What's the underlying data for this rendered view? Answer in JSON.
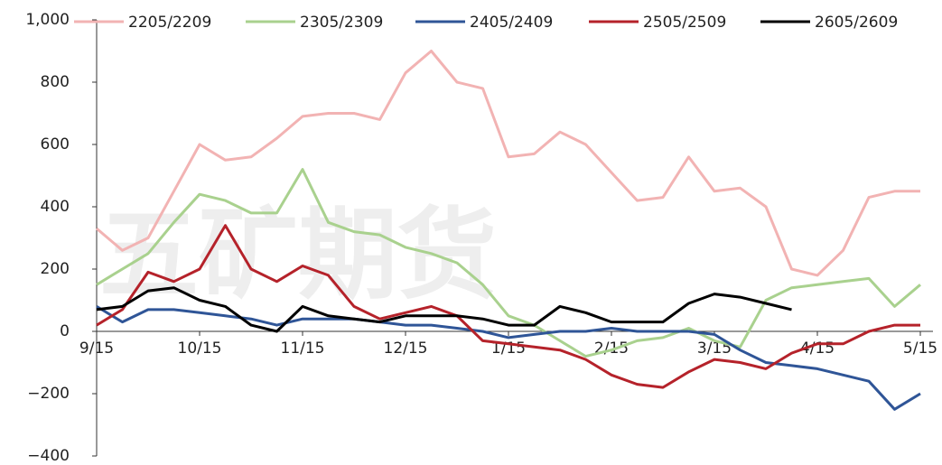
{
  "chart_data": {
    "type": "line",
    "watermark": "五矿期货",
    "categories": [
      "9/15",
      null,
      null,
      null,
      "10/15",
      null,
      null,
      null,
      "11/15",
      null,
      null,
      null,
      "12/15",
      null,
      null,
      null,
      "1/15",
      null,
      null,
      null,
      "2/15",
      null,
      null,
      null,
      "3/15",
      null,
      null,
      null,
      "4/15",
      null,
      null,
      null,
      "5/15"
    ],
    "series": [
      {
        "name": "2205/2209",
        "color": "#f2b3b3",
        "values": [
          330,
          260,
          300,
          450,
          600,
          550,
          560,
          620,
          690,
          700,
          700,
          680,
          830,
          900,
          800,
          780,
          560,
          570,
          640,
          600,
          510,
          420,
          430,
          560,
          450,
          460,
          400,
          200,
          180,
          260,
          430,
          450,
          450
        ]
      },
      {
        "name": "2305/2309",
        "color": "#a9d18e",
        "values": [
          150,
          200,
          250,
          350,
          440,
          420,
          380,
          380,
          520,
          350,
          320,
          310,
          270,
          250,
          220,
          150,
          50,
          20,
          -30,
          -80,
          -60,
          -30,
          -20,
          10,
          -30,
          -50,
          100,
          140,
          150,
          160,
          170,
          80,
          150
        ]
      },
      {
        "name": "2405/2409",
        "color": "#2f5597",
        "values": [
          80,
          30,
          70,
          70,
          60,
          50,
          40,
          20,
          40,
          40,
          40,
          30,
          20,
          20,
          10,
          0,
          -20,
          -10,
          0,
          0,
          10,
          0,
          0,
          0,
          -10,
          -60,
          -100,
          -110,
          -120,
          -140,
          -160,
          -250,
          -200
        ]
      },
      {
        "name": "2505/2509",
        "color": "#b5222a",
        "values": [
          20,
          70,
          190,
          160,
          200,
          340,
          200,
          160,
          210,
          180,
          80,
          40,
          60,
          80,
          50,
          -30,
          -40,
          -50,
          -60,
          -90,
          -140,
          -170,
          -180,
          -130,
          -90,
          -100,
          -120,
          -70,
          -40,
          -40,
          0,
          20,
          20
        ]
      },
      {
        "name": "2605/2609",
        "color": "#000000",
        "values": [
          70,
          80,
          130,
          140,
          100,
          80,
          20,
          0,
          80,
          50,
          40,
          30,
          50,
          50,
          50,
          40,
          20,
          20,
          80,
          60,
          30,
          30,
          30,
          90,
          120,
          110,
          90,
          70,
          null,
          null,
          null,
          null,
          null
        ]
      }
    ],
    "ylim": [
      -400,
      1000
    ],
    "yticks": [
      {
        "value": -400,
        "label": "−400"
      },
      {
        "value": -200,
        "label": "−200"
      },
      0,
      200,
      400,
      600,
      800,
      {
        "value": 1000,
        "label": "1,000"
      }
    ],
    "legend": "top"
  }
}
